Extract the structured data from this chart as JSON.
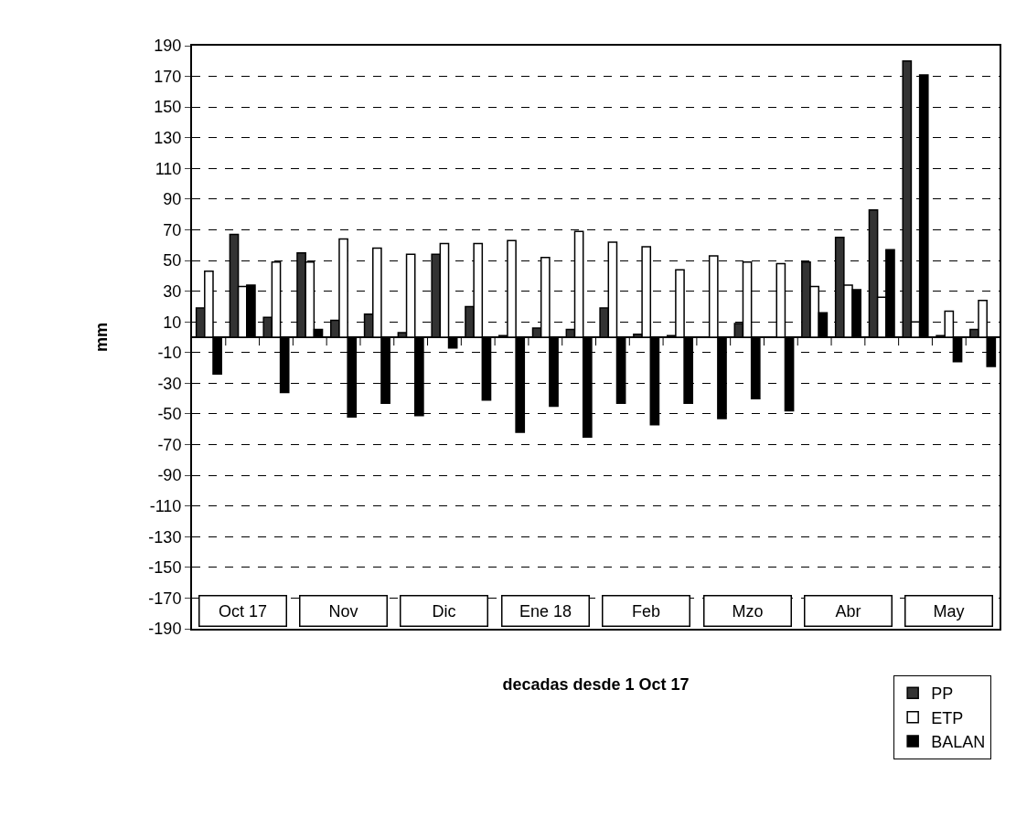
{
  "chart_data": {
    "type": "bar",
    "xlabel": "decadas desde 1 Oct 17",
    "ylabel": "mm",
    "categories": [
      null,
      null,
      null,
      null,
      null,
      null,
      null,
      null,
      null,
      null,
      null,
      null,
      null,
      null,
      null,
      null,
      null,
      null,
      null,
      null,
      null,
      null,
      null,
      null
    ],
    "series": [
      {
        "name": "PP",
        "color": "#333333",
        "values": [
          19,
          67,
          13,
          55,
          11,
          15,
          3,
          54,
          20,
          1,
          6,
          5,
          19,
          2,
          1,
          0,
          9,
          0,
          49,
          65,
          83,
          180,
          1,
          5
        ]
      },
      {
        "name": "ETP",
        "color": "#ffffff",
        "values": [
          43,
          33,
          49,
          49,
          64,
          58,
          54,
          61,
          61,
          63,
          52,
          69,
          62,
          59,
          44,
          53,
          49,
          48,
          33,
          34,
          26,
          10,
          17,
          24
        ]
      },
      {
        "name": "BALAN",
        "color": "#000000",
        "values": [
          -24,
          34,
          -36,
          5,
          -52,
          -43,
          -51,
          -7,
          -41,
          -62,
          -45,
          -65,
          -43,
          -57,
          -43,
          -53,
          -40,
          -48,
          16,
          31,
          57,
          171,
          -16,
          -19
        ]
      }
    ],
    "ylim": [
      -190,
      190
    ],
    "yticks": [
      -190,
      -170,
      -150,
      -130,
      -110,
      -90,
      -70,
      -50,
      -30,
      -10,
      10,
      30,
      50,
      70,
      90,
      110,
      130,
      150,
      170,
      190
    ],
    "grid": "y",
    "legend": "bottom right",
    "annotations": [
      "Oct 17",
      "Nov",
      "Dic",
      "Ene 18",
      "Feb",
      "Mzo",
      "Abr",
      "May"
    ]
  }
}
